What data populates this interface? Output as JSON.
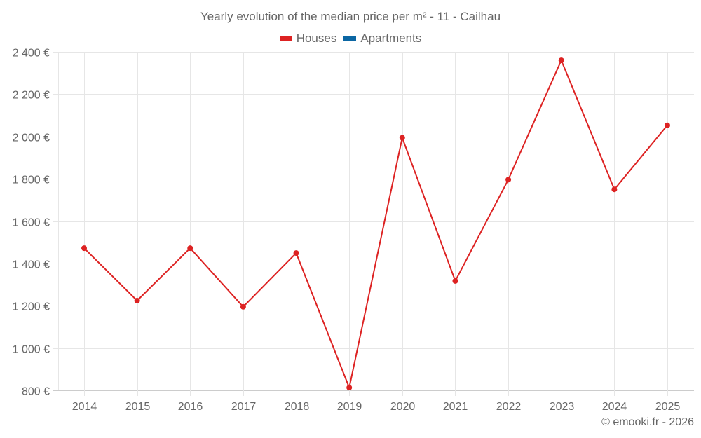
{
  "chart_data": {
    "type": "line",
    "title": "Yearly evolution of the median price per m² - 11 - Cailhau",
    "categories": [
      "2014",
      "2015",
      "2016",
      "2017",
      "2018",
      "2019",
      "2020",
      "2021",
      "2022",
      "2023",
      "2024",
      "2025"
    ],
    "series": [
      {
        "name": "Houses",
        "color": "#dd2222",
        "values": [
          1472,
          1224,
          1472,
          1195,
          1449,
          813,
          1994,
          1317,
          1796,
          2360,
          1750,
          2053
        ]
      },
      {
        "name": "Apartments",
        "color": "#0b66a3",
        "values": []
      }
    ],
    "xlabel": "",
    "ylabel": "",
    "ylim": [
      800,
      2400
    ],
    "yticks": [
      800,
      1000,
      1200,
      1400,
      1600,
      1800,
      2000,
      2200,
      2400
    ],
    "ytick_labels": [
      "800 €",
      "1 000 €",
      "1 200 €",
      "1 400 €",
      "1 600 €",
      "1 800 €",
      "2 000 €",
      "2 200 €",
      "2 400 €"
    ],
    "grid": true,
    "legend_position": "top"
  },
  "title": "Yearly evolution of the median price per m² - 11 - Cailhau",
  "legend": [
    {
      "label": "Houses",
      "color": "#dd2222"
    },
    {
      "label": "Apartments",
      "color": "#0b66a3"
    }
  ],
  "credit": "© emooki.fr - 2026"
}
